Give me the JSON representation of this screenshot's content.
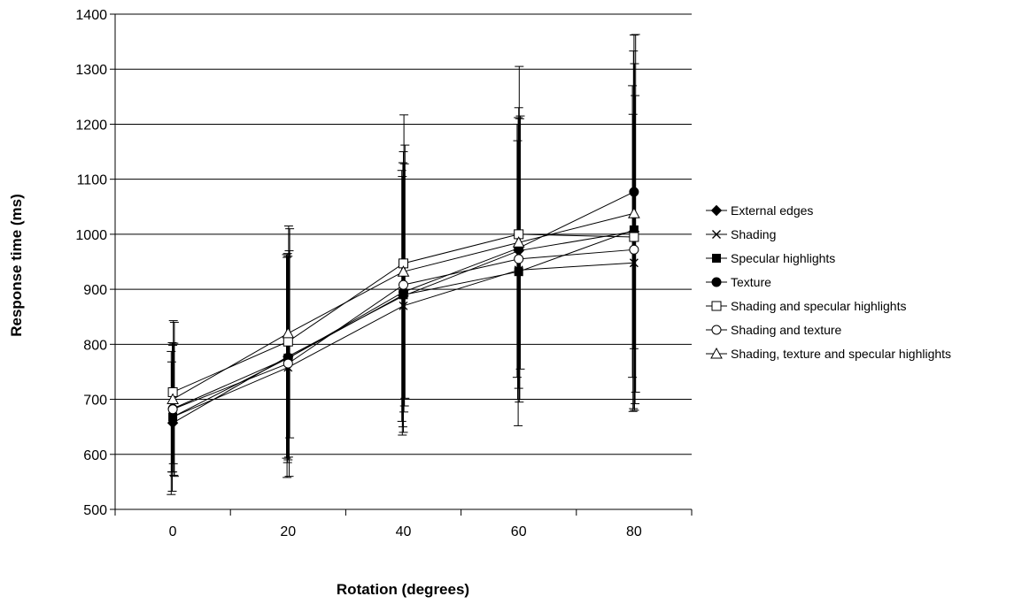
{
  "chart_data": {
    "type": "line",
    "title": "",
    "xlabel": "Rotation (degrees)",
    "ylabel": "Response time  (ms)",
    "x": [
      0,
      20,
      40,
      60,
      80
    ],
    "x_tick_labels": [
      "0",
      "20",
      "40",
      "60",
      "80"
    ],
    "xlim": [
      -10,
      90
    ],
    "ylim": [
      500,
      1400
    ],
    "y_ticks": [
      500,
      600,
      700,
      800,
      900,
      1000,
      1100,
      1200,
      1300,
      1400
    ],
    "y_tick_labels": [
      "500",
      "600",
      "700",
      "800",
      "900",
      "1000",
      "1100",
      "1200",
      "1300",
      "1400"
    ],
    "grid": "horizontal",
    "legend_position": "right",
    "series": [
      {
        "name": "External edges",
        "marker": "filled-diamond",
        "values": [
          657,
          778,
          888,
          970,
          1005
        ],
        "errors": [
          130,
          185,
          228,
          230,
          265
        ]
      },
      {
        "name": "Shading",
        "marker": "x",
        "values": [
          668,
          758,
          870,
          935,
          948
        ],
        "errors": [
          100,
          200,
          235,
          235,
          270
        ]
      },
      {
        "name": "Specular highlights",
        "marker": "filled-square",
        "values": [
          668,
          775,
          890,
          932,
          1008
        ],
        "errors": [
          135,
          190,
          240,
          280,
          325
        ]
      },
      {
        "name": "Texture",
        "marker": "filled-circle",
        "values": [
          683,
          775,
          895,
          975,
          1077
        ],
        "errors": [
          115,
          185,
          255,
          255,
          285
        ]
      },
      {
        "name": "Shading and specular highlights",
        "marker": "open-square",
        "values": [
          713,
          805,
          947,
          1000,
          995
        ],
        "errors": [
          130,
          210,
          270,
          305,
          315
        ]
      },
      {
        "name": "Shading and texture",
        "marker": "open-circle",
        "values": [
          682,
          765,
          908,
          955,
          972
        ],
        "errors": [
          120,
          205,
          220,
          255,
          280
        ]
      },
      {
        "name": "Shading, texture and specular highlights",
        "marker": "open-triangle",
        "values": [
          700,
          820,
          932,
          985,
          1038
        ],
        "errors": [
          140,
          190,
          230,
          230,
          325
        ]
      }
    ]
  }
}
